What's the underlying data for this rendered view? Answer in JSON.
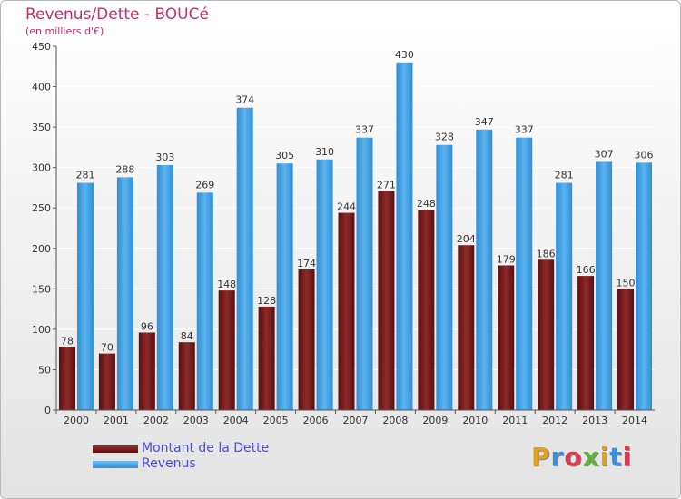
{
  "title": "Revenus/Dette - BOUCé",
  "subtitle": "(en milliers d'€)",
  "logo_text": "Proxiti",
  "colors": {
    "dette": "#7a1c1c",
    "revenus": "#3d9ee4",
    "title": "#c0306a",
    "legend_text": "#4a4ae0",
    "grid": "#ffffff"
  },
  "chart_data": {
    "type": "bar",
    "title": "Revenus/Dette - BOUCé",
    "subtitle": "(en milliers d'€)",
    "categories": [
      "2000",
      "2001",
      "2002",
      "2003",
      "2004",
      "2005",
      "2006",
      "2007",
      "2008",
      "2009",
      "2010",
      "2011",
      "2012",
      "2013",
      "2014"
    ],
    "series": [
      {
        "name": "Montant de la Dette",
        "values": [
          78,
          70,
          96,
          84,
          148,
          128,
          174,
          244,
          271,
          248,
          204,
          179,
          186,
          166,
          150
        ]
      },
      {
        "name": "Revenus",
        "values": [
          281,
          288,
          303,
          269,
          374,
          305,
          310,
          337,
          430,
          328,
          347,
          337,
          281,
          307,
          306
        ]
      }
    ],
    "ylim": [
      0,
      450
    ],
    "yticks": [
      0,
      50,
      100,
      150,
      200,
      250,
      300,
      350,
      400,
      450
    ],
    "grid": true,
    "legend": "bottom-left"
  }
}
